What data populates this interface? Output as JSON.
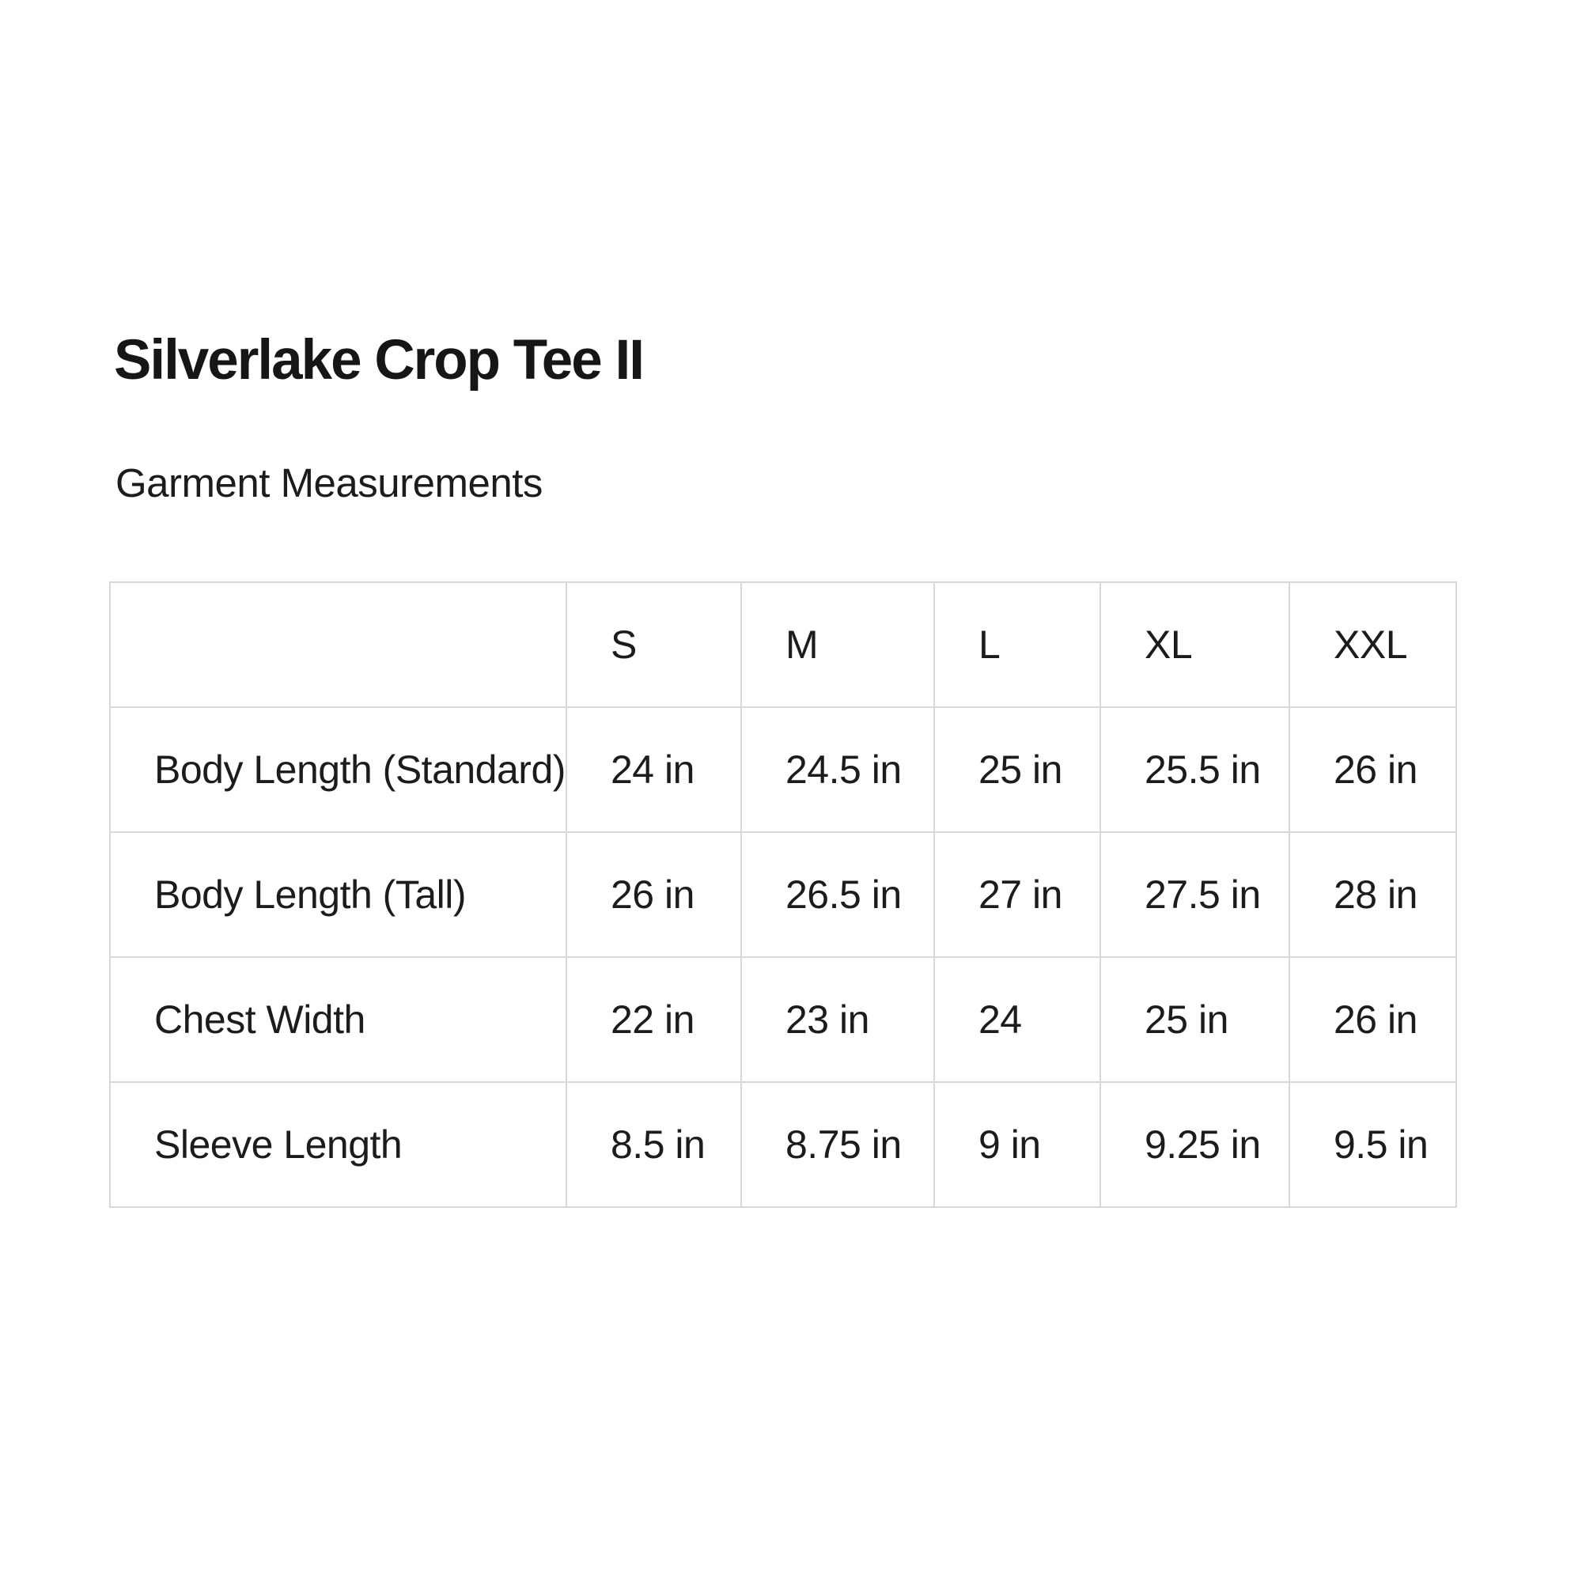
{
  "page": {
    "title": "Silverlake Crop Tee II",
    "subtitle": "Garment Measurements"
  },
  "table": {
    "corner_label": "",
    "columns": [
      "S",
      "M",
      "L",
      "XL",
      "XXL"
    ],
    "rows": [
      {
        "label": "Body Length (Standard)",
        "values": [
          "24 in",
          "24.5 in",
          "25 in",
          "25.5 in",
          "26 in"
        ]
      },
      {
        "label": "Body Length (Tall)",
        "values": [
          "26 in",
          "26.5 in",
          "27 in",
          "27.5 in",
          "28 in"
        ]
      },
      {
        "label": "Chest Width",
        "values": [
          "22 in",
          "23 in",
          "24",
          "25 in",
          "26 in"
        ]
      },
      {
        "label": "Sleeve Length",
        "values": [
          "8.5 in",
          "8.75 in",
          "9 in",
          "9.25 in",
          "9.5 in"
        ]
      }
    ]
  },
  "colors": {
    "background": "#ffffff",
    "text": "#1c1c1c",
    "title_text": "#161616",
    "table_border": "#d8d8d8"
  }
}
